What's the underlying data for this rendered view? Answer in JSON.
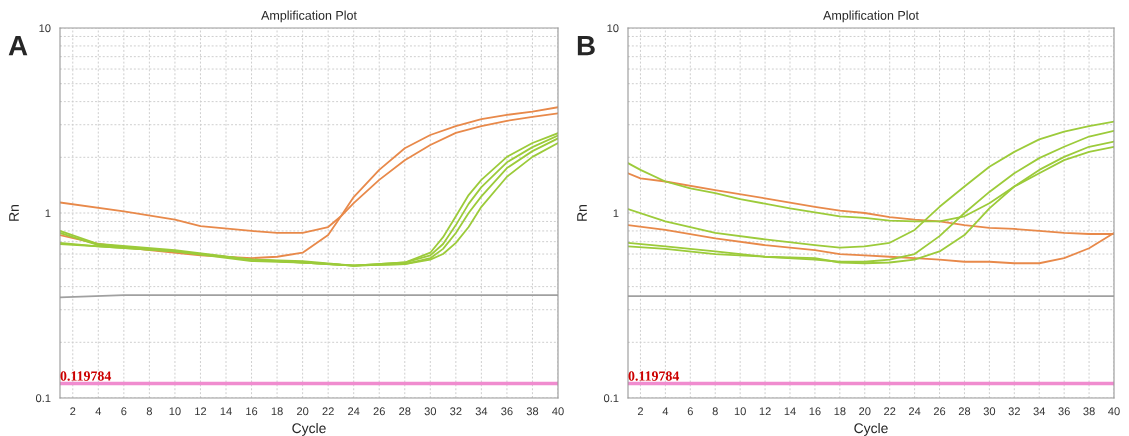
{
  "chart_data": [
    {
      "type": "line",
      "title": "Amplification Plot",
      "xlabel": "Cycle",
      "ylabel": "Rn",
      "annotations": [
        "A"
      ],
      "xlim": [
        1,
        40
      ],
      "xticks": [
        2,
        4,
        6,
        8,
        10,
        12,
        14,
        16,
        18,
        20,
        22,
        24,
        26,
        28,
        30,
        32,
        34,
        36,
        38,
        40
      ],
      "ylim": [
        0.1,
        10
      ],
      "log": "y",
      "grid": true,
      "yticks": [
        0.1,
        {
          "value": 0.2,
          "label": null
        },
        {
          "value": 0.3,
          "label": null
        },
        {
          "value": 0.4,
          "label": null
        },
        {
          "value": 0.5,
          "label": null
        },
        {
          "value": 0.6,
          "label": null
        },
        {
          "value": 0.7,
          "label": null
        },
        {
          "value": 0.8,
          "label": null
        },
        {
          "value": 0.9,
          "label": null
        },
        1,
        {
          "value": 2,
          "label": null
        },
        {
          "value": 3,
          "label": null
        },
        {
          "value": 4,
          "label": null
        },
        {
          "value": 5,
          "label": null
        },
        {
          "value": 6,
          "label": null
        },
        {
          "value": 7,
          "label": null
        },
        {
          "value": 8,
          "label": null
        },
        {
          "value": 9,
          "label": null
        },
        10
      ],
      "ref_lines": [
        {
          "axis": "y",
          "value": 0.119784,
          "label": "0.119784",
          "color": "#f08ccf"
        }
      ],
      "series": [
        {
          "color": "#a0a0a0",
          "x": [
            1,
            6,
            10,
            20,
            30,
            40
          ],
          "values": [
            0.35,
            0.36,
            0.36,
            0.36,
            0.36,
            0.36
          ]
        },
        {
          "color": "#e8894a",
          "x": [
            1,
            6,
            10,
            12,
            16,
            18,
            20,
            22,
            23,
            24,
            26,
            28,
            30,
            32,
            34,
            36,
            38,
            40
          ],
          "values": [
            1.14,
            1.02,
            0.92,
            0.85,
            0.8,
            0.78,
            0.78,
            0.84,
            0.96,
            1.22,
            1.71,
            2.24,
            2.64,
            2.95,
            3.22,
            3.39,
            3.53,
            3.73
          ]
        },
        {
          "color": "#e8894a",
          "x": [
            1,
            4,
            8,
            12,
            16,
            18,
            20,
            22,
            23,
            24,
            26,
            28,
            30,
            32,
            34,
            36,
            38,
            40
          ],
          "values": [
            0.76,
            0.68,
            0.63,
            0.59,
            0.57,
            0.58,
            0.61,
            0.76,
            0.96,
            1.13,
            1.51,
            1.93,
            2.33,
            2.71,
            2.95,
            3.15,
            3.31,
            3.46
          ]
        },
        {
          "color": "#9ccb3a",
          "x": [
            1,
            4,
            10,
            16,
            20,
            24,
            28,
            30,
            31,
            32,
            33,
            34,
            36,
            38,
            40
          ],
          "values": [
            0.8,
            0.68,
            0.63,
            0.56,
            0.55,
            0.52,
            0.54,
            0.61,
            0.74,
            0.96,
            1.25,
            1.51,
            2.01,
            2.39,
            2.7
          ]
        },
        {
          "color": "#9ccb3a",
          "x": [
            1,
            4,
            10,
            16,
            20,
            24,
            28,
            30,
            31,
            32,
            33,
            34,
            36,
            38,
            40
          ],
          "values": [
            0.78,
            0.67,
            0.62,
            0.56,
            0.54,
            0.52,
            0.54,
            0.59,
            0.68,
            0.86,
            1.12,
            1.38,
            1.88,
            2.27,
            2.62
          ]
        },
        {
          "color": "#9ccb3a",
          "x": [
            1,
            4,
            10,
            16,
            20,
            24,
            28,
            30,
            31,
            32,
            33,
            34,
            36,
            38,
            40
          ],
          "values": [
            0.69,
            0.66,
            0.62,
            0.56,
            0.54,
            0.52,
            0.53,
            0.57,
            0.64,
            0.78,
            1.0,
            1.23,
            1.75,
            2.16,
            2.53
          ]
        },
        {
          "color": "#9ccb3a",
          "x": [
            1,
            4,
            10,
            16,
            20,
            24,
            28,
            30,
            31,
            32,
            33,
            34,
            36,
            38,
            40
          ],
          "values": [
            0.68,
            0.66,
            0.62,
            0.55,
            0.54,
            0.52,
            0.53,
            0.56,
            0.6,
            0.69,
            0.84,
            1.08,
            1.57,
            2.01,
            2.39
          ]
        }
      ]
    },
    {
      "type": "line",
      "title": "Amplification Plot",
      "xlabel": "Cycle",
      "ylabel": "Rn",
      "annotations": [
        "B"
      ],
      "xlim": [
        1,
        40
      ],
      "xticks": [
        2,
        4,
        6,
        8,
        10,
        12,
        14,
        16,
        18,
        20,
        22,
        24,
        26,
        28,
        30,
        32,
        34,
        36,
        38,
        40
      ],
      "ylim": [
        0.1,
        10
      ],
      "log": "y",
      "grid": true,
      "yticks": [
        0.1,
        {
          "value": 0.2,
          "label": null
        },
        {
          "value": 0.3,
          "label": null
        },
        {
          "value": 0.4,
          "label": null
        },
        {
          "value": 0.5,
          "label": null
        },
        {
          "value": 0.6,
          "label": null
        },
        {
          "value": 0.7,
          "label": null
        },
        {
          "value": 0.8,
          "label": null
        },
        {
          "value": 0.9,
          "label": null
        },
        1,
        {
          "value": 2,
          "label": null
        },
        {
          "value": 3,
          "label": null
        },
        {
          "value": 4,
          "label": null
        },
        {
          "value": 5,
          "label": null
        },
        {
          "value": 6,
          "label": null
        },
        {
          "value": 7,
          "label": null
        },
        {
          "value": 8,
          "label": null
        },
        {
          "value": 9,
          "label": null
        },
        10
      ],
      "ref_lines": [
        {
          "axis": "y",
          "value": 0.119784,
          "label": "0.119784",
          "color": "#f08ccf"
        }
      ],
      "series": [
        {
          "color": "#a0a0a0",
          "x": [
            1,
            10,
            20,
            30,
            40
          ],
          "values": [
            0.355,
            0.355,
            0.355,
            0.355,
            0.355
          ]
        },
        {
          "color": "#e8894a",
          "x": [
            1,
            2,
            4,
            8,
            12,
            16,
            18,
            20,
            22,
            24,
            26,
            28,
            30,
            32,
            34,
            36,
            38,
            40
          ],
          "values": [
            1.64,
            1.54,
            1.48,
            1.33,
            1.2,
            1.08,
            1.03,
            1.0,
            0.95,
            0.92,
            0.9,
            0.86,
            0.83,
            0.82,
            0.8,
            0.78,
            0.77,
            0.77
          ]
        },
        {
          "color": "#e8894a",
          "x": [
            1,
            4,
            8,
            12,
            16,
            18,
            20,
            22,
            24,
            26,
            28,
            30,
            32,
            34,
            36,
            38,
            40
          ],
          "values": [
            0.86,
            0.81,
            0.73,
            0.67,
            0.63,
            0.6,
            0.59,
            0.58,
            0.57,
            0.56,
            0.545,
            0.545,
            0.535,
            0.535,
            0.57,
            0.645,
            0.78
          ]
        },
        {
          "color": "#9ccb3a",
          "x": [
            1,
            2,
            4,
            6,
            8,
            10,
            14,
            18,
            20,
            22,
            24,
            26,
            28,
            30,
            32,
            34,
            36,
            38,
            40
          ],
          "values": [
            1.86,
            1.71,
            1.48,
            1.36,
            1.28,
            1.19,
            1.06,
            0.96,
            0.94,
            0.91,
            0.9,
            0.9,
            0.96,
            1.13,
            1.39,
            1.64,
            1.93,
            2.14,
            2.28
          ]
        },
        {
          "color": "#9ccb3a",
          "x": [
            1,
            4,
            8,
            12,
            16,
            18,
            20,
            22,
            24,
            26,
            28,
            30,
            32,
            34,
            36,
            38,
            40
          ],
          "values": [
            1.05,
            0.9,
            0.78,
            0.72,
            0.67,
            0.65,
            0.66,
            0.69,
            0.81,
            1.08,
            1.39,
            1.78,
            2.14,
            2.5,
            2.75,
            2.95,
            3.12
          ]
        },
        {
          "color": "#9ccb3a",
          "x": [
            1,
            4,
            8,
            12,
            16,
            18,
            20,
            22,
            24,
            26,
            28,
            30,
            32,
            34,
            36,
            38,
            40
          ],
          "values": [
            0.69,
            0.66,
            0.62,
            0.58,
            0.56,
            0.545,
            0.545,
            0.56,
            0.6,
            0.75,
            1.0,
            1.3,
            1.64,
            1.98,
            2.28,
            2.59,
            2.78
          ]
        },
        {
          "color": "#9ccb3a",
          "x": [
            1,
            4,
            8,
            12,
            16,
            18,
            20,
            22,
            24,
            26,
            28,
            30,
            32,
            34,
            36,
            38,
            40
          ],
          "values": [
            0.66,
            0.64,
            0.6,
            0.58,
            0.57,
            0.54,
            0.535,
            0.54,
            0.56,
            0.62,
            0.76,
            1.06,
            1.39,
            1.71,
            2.01,
            2.28,
            2.43
          ]
        }
      ]
    }
  ]
}
